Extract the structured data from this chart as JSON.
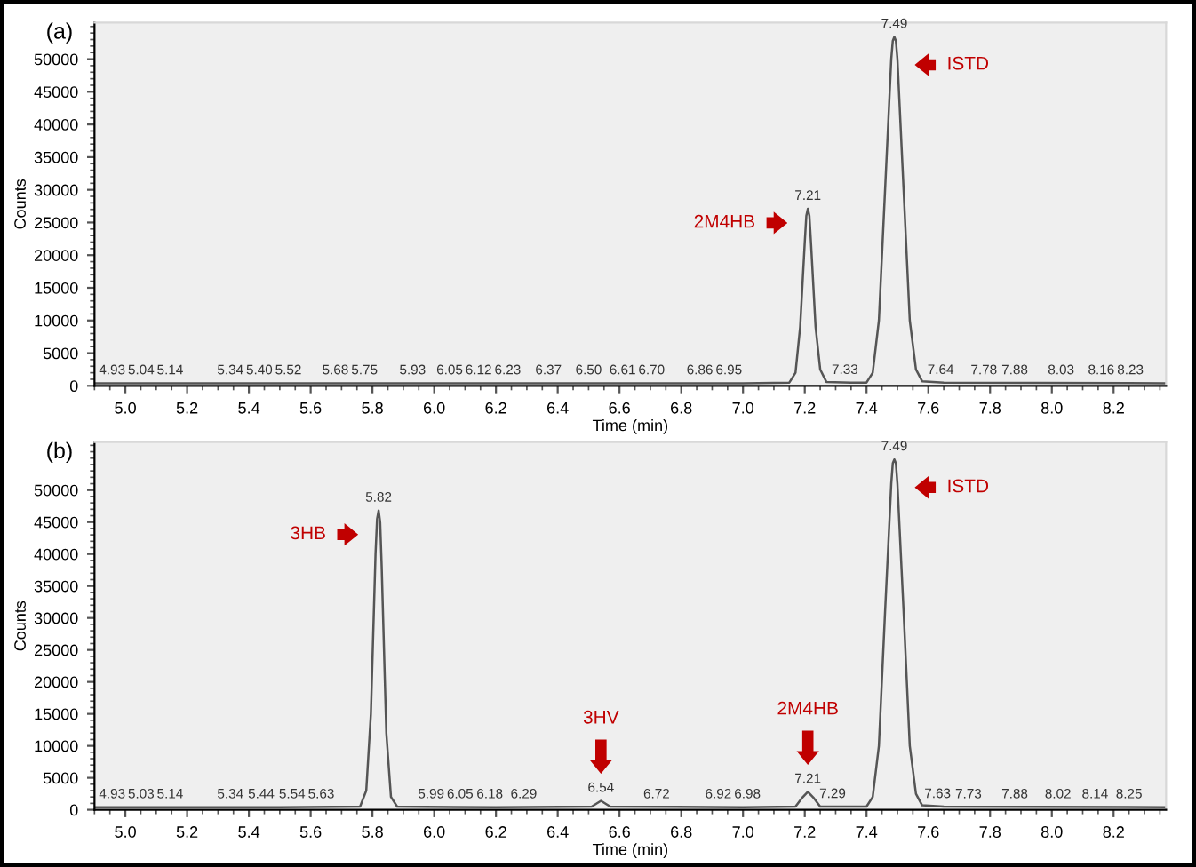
{
  "chart_data": [
    {
      "type": "line",
      "title": "(a)",
      "xlabel": "Time (min)",
      "ylabel": "Counts",
      "series": [
        {
          "color": "#555555",
          "x": [
            4.9,
            5.5,
            6.5,
            7.0,
            7.15,
            7.17,
            7.185,
            7.2,
            7.205,
            7.21,
            7.215,
            7.22,
            7.235,
            7.25,
            7.27,
            7.35,
            7.4,
            7.42,
            7.44,
            7.46,
            7.48,
            7.485,
            7.49,
            7.495,
            7.5,
            7.52,
            7.54,
            7.56,
            7.58,
            7.65,
            8.37
          ],
          "values": [
            400,
            400,
            400,
            400,
            500,
            2000,
            9000,
            22000,
            26000,
            27100,
            26000,
            22000,
            9000,
            2500,
            600,
            500,
            500,
            2000,
            10000,
            30000,
            50000,
            52800,
            53400,
            52800,
            50000,
            30000,
            10000,
            2500,
            700,
            500,
            400
          ]
        }
      ],
      "xlim": [
        4.9,
        8.37
      ],
      "ylim": [
        0,
        55600
      ],
      "xticks": [
        {
          "value": 5.0,
          "label": "5.0"
        },
        {
          "value": 5.2,
          "label": "5.2"
        },
        {
          "value": 5.4,
          "label": "5.4"
        },
        {
          "value": 5.6,
          "label": "5.6"
        },
        {
          "value": 5.8,
          "label": "5.8"
        },
        {
          "value": 6.0,
          "label": "6.0"
        },
        {
          "value": 6.2,
          "label": "6.2"
        },
        {
          "value": 6.4,
          "label": "6.4"
        },
        {
          "value": 6.6,
          "label": "6.6"
        },
        {
          "value": 6.8,
          "label": "6.8"
        },
        {
          "value": 7.0,
          "label": "7.0"
        },
        {
          "value": 7.2,
          "label": "7.2"
        },
        {
          "value": 7.4,
          "label": "7.4"
        },
        {
          "value": 7.6,
          "label": "7.6"
        },
        {
          "value": 7.8,
          "label": "7.8"
        },
        {
          "value": 8.0,
          "label": "8.0"
        },
        {
          "value": 8.2,
          "label": "8.2"
        }
      ],
      "yticks": [
        0,
        5000,
        10000,
        15000,
        20000,
        25000,
        30000,
        35000,
        40000,
        45000,
        50000
      ],
      "grid": false,
      "marker": "none",
      "line_style": "solid",
      "annotations": [
        {
          "text": "4.93",
          "x": 4.93,
          "y": 400
        },
        {
          "text": "5.04",
          "x": 5.04,
          "y": 400
        },
        {
          "text": "5.14",
          "x": 5.14,
          "y": 400
        },
        {
          "text": "5.34",
          "x": 5.34,
          "y": 400
        },
        {
          "text": "5.40",
          "x": 5.4,
          "y": 400
        },
        {
          "text": "5.52",
          "x": 5.52,
          "y": 400
        },
        {
          "text": "5.68",
          "x": 5.68,
          "y": 400
        },
        {
          "text": "5.75",
          "x": 5.75,
          "y": 400
        },
        {
          "text": "5.93",
          "x": 5.93,
          "y": 400
        },
        {
          "text": "6.05",
          "x": 6.05,
          "y": 400
        },
        {
          "text": "6.12",
          "x": 6.12,
          "y": 400
        },
        {
          "text": "6.23",
          "x": 6.23,
          "y": 400
        },
        {
          "text": "6.37",
          "x": 6.37,
          "y": 400
        },
        {
          "text": "6.50",
          "x": 6.5,
          "y": 400
        },
        {
          "text": "6.61",
          "x": 6.61,
          "y": 400
        },
        {
          "text": "6.70",
          "x": 6.7,
          "y": 400
        },
        {
          "text": "6.86",
          "x": 6.86,
          "y": 400
        },
        {
          "text": "6.95",
          "x": 6.95,
          "y": 400
        },
        {
          "text": "7.21",
          "x": 7.21,
          "y": 27100
        },
        {
          "text": "7.33",
          "x": 7.33,
          "y": 450
        },
        {
          "text": "7.49",
          "x": 7.49,
          "y": 53400
        },
        {
          "text": "7.64",
          "x": 7.64,
          "y": 450
        },
        {
          "text": "7.78",
          "x": 7.78,
          "y": 400
        },
        {
          "text": "7.88",
          "x": 7.88,
          "y": 400
        },
        {
          "text": "8.03",
          "x": 8.03,
          "y": 400
        },
        {
          "text": "8.16",
          "x": 8.16,
          "y": 400
        },
        {
          "text": "8.23",
          "x": 8.23,
          "y": 400
        },
        "2M4HB",
        "ISTD"
      ]
    },
    {
      "type": "line",
      "title": "(b)",
      "xlabel": "Time (min)",
      "ylabel": "Counts",
      "series": [
        {
          "color": "#555555",
          "x": [
            4.9,
            5.5,
            5.76,
            5.78,
            5.795,
            5.81,
            5.815,
            5.82,
            5.825,
            5.83,
            5.845,
            5.86,
            5.88,
            6.2,
            6.51,
            6.54,
            6.57,
            7.0,
            7.17,
            7.19,
            7.21,
            7.23,
            7.25,
            7.35,
            7.4,
            7.42,
            7.44,
            7.46,
            7.48,
            7.485,
            7.49,
            7.495,
            7.5,
            7.52,
            7.54,
            7.56,
            7.58,
            7.65,
            8.37
          ],
          "values": [
            400,
            400,
            500,
            3000,
            15000,
            40000,
            45500,
            46800,
            45000,
            38000,
            12000,
            2000,
            500,
            400,
            500,
            1400,
            500,
            400,
            500,
            1800,
            2800,
            1800,
            500,
            500,
            500,
            2000,
            10000,
            31000,
            51000,
            54200,
            54800,
            54200,
            51000,
            31000,
            10000,
            2500,
            700,
            500,
            400
          ]
        }
      ],
      "xlim": [
        4.9,
        8.37
      ],
      "ylim": [
        0,
        57500
      ],
      "xticks": [
        {
          "value": 5.0,
          "label": "5.0"
        },
        {
          "value": 5.2,
          "label": "5.2"
        },
        {
          "value": 5.4,
          "label": "5.4"
        },
        {
          "value": 5.6,
          "label": "5.6"
        },
        {
          "value": 5.8,
          "label": "5.8"
        },
        {
          "value": 6.0,
          "label": "6.0"
        },
        {
          "value": 6.2,
          "label": "6.2"
        },
        {
          "value": 6.4,
          "label": "6.4"
        },
        {
          "value": 6.6,
          "label": "6.6"
        },
        {
          "value": 6.8,
          "label": "6.8"
        },
        {
          "value": 7.0,
          "label": "7.0"
        },
        {
          "value": 7.2,
          "label": "7.2"
        },
        {
          "value": 7.4,
          "label": "7.4"
        },
        {
          "value": 7.6,
          "label": "7.6"
        },
        {
          "value": 7.8,
          "label": "7.8"
        },
        {
          "value": 8.0,
          "label": "8.0"
        },
        {
          "value": 8.2,
          "label": "8.2"
        }
      ],
      "yticks": [
        0,
        5000,
        10000,
        15000,
        20000,
        25000,
        30000,
        35000,
        40000,
        45000,
        50000
      ],
      "grid": false,
      "marker": "none",
      "line_style": "solid",
      "annotations": [
        {
          "text": "4.93",
          "x": 4.93,
          "y": 400
        },
        {
          "text": "5.03",
          "x": 5.03,
          "y": 400
        },
        {
          "text": "5.14",
          "x": 5.14,
          "y": 400
        },
        {
          "text": "5.34",
          "x": 5.34,
          "y": 400
        },
        {
          "text": "5.44",
          "x": 5.44,
          "y": 400
        },
        {
          "text": "5.54",
          "x": 5.54,
          "y": 400
        },
        {
          "text": "5.63",
          "x": 5.63,
          "y": 400
        },
        {
          "text": "5.82",
          "x": 5.82,
          "y": 46800
        },
        {
          "text": "5.99",
          "x": 5.99,
          "y": 400
        },
        {
          "text": "6.05",
          "x": 6.05,
          "y": 400
        },
        {
          "text": "6.18",
          "x": 6.18,
          "y": 400
        },
        {
          "text": "6.29",
          "x": 6.29,
          "y": 400
        },
        {
          "text": "6.54",
          "x": 6.54,
          "y": 1400
        },
        {
          "text": "6.72",
          "x": 6.72,
          "y": 400
        },
        {
          "text": "6.92",
          "x": 6.92,
          "y": 400
        },
        {
          "text": "6.98",
          "x": 6.98,
          "y": 400
        },
        {
          "text": "7.21",
          "x": 7.21,
          "y": 2800
        },
        {
          "text": "7.29",
          "x": 7.29,
          "y": 450
        },
        {
          "text": "7.49",
          "x": 7.49,
          "y": 54800
        },
        {
          "text": "7.63",
          "x": 7.63,
          "y": 450
        },
        {
          "text": "7.73",
          "x": 7.73,
          "y": 400
        },
        {
          "text": "7.88",
          "x": 7.88,
          "y": 400
        },
        {
          "text": "8.02",
          "x": 8.02,
          "y": 400
        },
        {
          "text": "8.14",
          "x": 8.14,
          "y": 400
        },
        {
          "text": "8.25",
          "x": 8.25,
          "y": 400
        },
        "3HB",
        "3HV",
        "2M4HB",
        "ISTD"
      ]
    }
  ]
}
